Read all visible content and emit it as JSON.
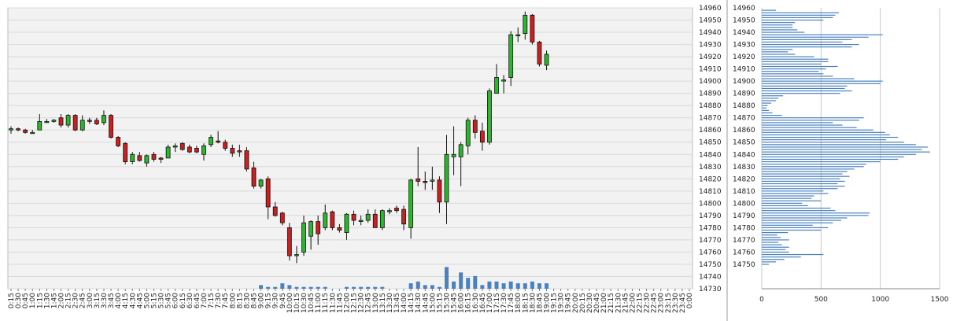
{
  "chart_data": [
    {
      "type": "candlestick",
      "title": "",
      "xlabel": "",
      "ylabel": "",
      "ylim": [
        14730,
        14960
      ],
      "y_ticks": [
        14730,
        14740,
        14750,
        14760,
        14770,
        14780,
        14790,
        14800,
        14810,
        14820,
        14830,
        14840,
        14850,
        14860,
        14870,
        14880,
        14890,
        14900,
        14910,
        14920,
        14930,
        14940,
        14950,
        14960
      ],
      "x_ticks": [
        "0:15",
        "0:30",
        "0:45",
        "1:00",
        "1:15",
        "1:30",
        "1:45",
        "2:00",
        "2:15",
        "2:30",
        "2:45",
        "3:00",
        "3:15",
        "3:30",
        "3:45",
        "4:00",
        "4:15",
        "4:30",
        "4:45",
        "5:00",
        "5:15",
        "5:30",
        "5:45",
        "6:00",
        "6:15",
        "6:30",
        "6:45",
        "7:00",
        "7:15",
        "7:30",
        "7:45",
        "8:00",
        "8:15",
        "8:30",
        "8:45",
        "9:00",
        "9:15",
        "9:30",
        "9:45",
        "10:00",
        "10:15",
        "10:30",
        "10:45",
        "11:00",
        "11:15",
        "11:30",
        "11:45",
        "12:00",
        "12:15",
        "12:30",
        "12:45",
        "13:00",
        "13:15",
        "13:30",
        "13:45",
        "14:00",
        "14:15",
        "14:30",
        "14:45",
        "15:00",
        "15:15",
        "15:30",
        "15:45",
        "16:00",
        "16:15",
        "16:30",
        "16:45",
        "17:00",
        "17:15",
        "17:30",
        "17:45",
        "18:00",
        "18:15",
        "18:30",
        "18:45",
        "19:00",
        "19:15",
        "19:30",
        "19:45",
        "20:00",
        "20:15",
        "20:30",
        "20:45",
        "21:00",
        "21:15",
        "21:30",
        "21:45",
        "22:00",
        "22:15",
        "22:30",
        "22:45",
        "23:00",
        "23:15",
        "23:30",
        "23:45",
        "0:00"
      ],
      "grid": true,
      "colors": {
        "up": "#2db52d",
        "down": "#cc1f1f",
        "volume": "#4a82c0",
        "background": "#f2f2f2",
        "grid": "#d9d9d9"
      },
      "candles": [
        {
          "t": "0:15",
          "o": 14860,
          "h": 14863,
          "l": 14857,
          "c": 14861
        },
        {
          "t": "0:30",
          "o": 14861,
          "h": 14862,
          "l": 14859,
          "c": 14860
        },
        {
          "t": "0:45",
          "o": 14860,
          "h": 14861,
          "l": 14857,
          "c": 14858
        },
        {
          "t": "1:00",
          "o": 14858,
          "h": 14860,
          "l": 14857,
          "c": 14858
        },
        {
          "t": "1:15",
          "o": 14860,
          "h": 14873,
          "l": 14860,
          "c": 14867
        },
        {
          "t": "1:30",
          "o": 14867,
          "h": 14869,
          "l": 14866,
          "c": 14867
        },
        {
          "t": "1:45",
          "o": 14867,
          "h": 14869,
          "l": 14866,
          "c": 14868
        },
        {
          "t": "2:00",
          "o": 14870,
          "h": 14873,
          "l": 14862,
          "c": 14864
        },
        {
          "t": "2:15",
          "o": 14864,
          "h": 14873,
          "l": 14862,
          "c": 14872
        },
        {
          "t": "2:30",
          "o": 14872,
          "h": 14873,
          "l": 14859,
          "c": 14860
        },
        {
          "t": "2:45",
          "o": 14860,
          "h": 14872,
          "l": 14859,
          "c": 14868
        },
        {
          "t": "3:00",
          "o": 14868,
          "h": 14870,
          "l": 14865,
          "c": 14867
        },
        {
          "t": "3:15",
          "o": 14868,
          "h": 14870,
          "l": 14864,
          "c": 14865
        },
        {
          "t": "3:30",
          "o": 14866,
          "h": 14876,
          "l": 14864,
          "c": 14872
        },
        {
          "t": "3:45",
          "o": 14872,
          "h": 14873,
          "l": 14853,
          "c": 14854
        },
        {
          "t": "4:00",
          "o": 14854,
          "h": 14855,
          "l": 14846,
          "c": 14847
        },
        {
          "t": "4:15",
          "o": 14849,
          "h": 14850,
          "l": 14832,
          "c": 14834
        },
        {
          "t": "4:30",
          "o": 14834,
          "h": 14842,
          "l": 14832,
          "c": 14840
        },
        {
          "t": "4:45",
          "o": 14839,
          "h": 14842,
          "l": 14834,
          "c": 14835
        },
        {
          "t": "5:00",
          "o": 14833,
          "h": 14840,
          "l": 14830,
          "c": 14839
        },
        {
          "t": "5:15",
          "o": 14840,
          "h": 14842,
          "l": 14834,
          "c": 14836
        },
        {
          "t": "5:30",
          "o": 14837,
          "h": 14838,
          "l": 14833,
          "c": 14836
        },
        {
          "t": "5:45",
          "o": 14837,
          "h": 14848,
          "l": 14837,
          "c": 14846
        },
        {
          "t": "6:00",
          "o": 14846,
          "h": 14849,
          "l": 14842,
          "c": 14847
        },
        {
          "t": "6:15",
          "o": 14849,
          "h": 14850,
          "l": 14843,
          "c": 14844
        },
        {
          "t": "6:30",
          "o": 14846,
          "h": 14848,
          "l": 14841,
          "c": 14842
        },
        {
          "t": "6:45",
          "o": 14845,
          "h": 14847,
          "l": 14841,
          "c": 14842
        },
        {
          "t": "7:00",
          "o": 14840,
          "h": 14849,
          "l": 14835,
          "c": 14847
        },
        {
          "t": "7:15",
          "o": 14848,
          "h": 14856,
          "l": 14846,
          "c": 14854
        },
        {
          "t": "7:30",
          "o": 14851,
          "h": 14859,
          "l": 14849,
          "c": 14850
        },
        {
          "t": "7:45",
          "o": 14850,
          "h": 14852,
          "l": 14843,
          "c": 14845
        },
        {
          "t": "8:00",
          "o": 14845,
          "h": 14848,
          "l": 14838,
          "c": 14841
        },
        {
          "t": "8:15",
          "o": 14843,
          "h": 14848,
          "l": 14838,
          "c": 14842
        },
        {
          "t": "8:30",
          "o": 14843,
          "h": 14846,
          "l": 14826,
          "c": 14828
        },
        {
          "t": "8:45",
          "o": 14829,
          "h": 14834,
          "l": 14812,
          "c": 14814
        },
        {
          "t": "9:00",
          "o": 14814,
          "h": 14820,
          "l": 14812,
          "c": 14819
        },
        {
          "t": "9:15",
          "o": 14820,
          "h": 14822,
          "l": 14787,
          "c": 14797
        },
        {
          "t": "9:30",
          "o": 14797,
          "h": 14801,
          "l": 14789,
          "c": 14790
        },
        {
          "t": "9:45",
          "o": 14792,
          "h": 14793,
          "l": 14782,
          "c": 14784
        },
        {
          "t": "10:00",
          "o": 14780,
          "h": 14784,
          "l": 14753,
          "c": 14757
        },
        {
          "t": "10:15",
          "o": 14758,
          "h": 14765,
          "l": 14751,
          "c": 14758
        },
        {
          "t": "10:30",
          "o": 14760,
          "h": 14790,
          "l": 14757,
          "c": 14784
        },
        {
          "t": "10:45",
          "o": 14773,
          "h": 14786,
          "l": 14762,
          "c": 14785
        },
        {
          "t": "11:00",
          "o": 14785,
          "h": 14790,
          "l": 14766,
          "c": 14775
        },
        {
          "t": "11:15",
          "o": 14780,
          "h": 14799,
          "l": 14778,
          "c": 14792
        },
        {
          "t": "11:30",
          "o": 14793,
          "h": 14794,
          "l": 14778,
          "c": 14780
        },
        {
          "t": "11:45",
          "o": 14780,
          "h": 14783,
          "l": 14776,
          "c": 14778
        },
        {
          "t": "12:00",
          "o": 14776,
          "h": 14792,
          "l": 14770,
          "c": 14791
        },
        {
          "t": "12:15",
          "o": 14791,
          "h": 14794,
          "l": 14782,
          "c": 14786
        },
        {
          "t": "12:30",
          "o": 14786,
          "h": 14790,
          "l": 14782,
          "c": 14786
        },
        {
          "t": "12:45",
          "o": 14786,
          "h": 14795,
          "l": 14784,
          "c": 14791
        },
        {
          "t": "13:00",
          "o": 14791,
          "h": 14795,
          "l": 14782,
          "c": 14780
        },
        {
          "t": "13:15",
          "o": 14780,
          "h": 14795,
          "l": 14778,
          "c": 14794
        },
        {
          "t": "13:30",
          "o": 14794,
          "h": 14796,
          "l": 14791,
          "c": 14794
        },
        {
          "t": "13:45",
          "o": 14796,
          "h": 14798,
          "l": 14792,
          "c": 14794
        },
        {
          "t": "14:00",
          "o": 14795,
          "h": 14798,
          "l": 14778,
          "c": 14783
        },
        {
          "t": "14:15",
          "o": 14780,
          "h": 14820,
          "l": 14771,
          "c": 14819
        },
        {
          "t": "14:30",
          "o": 14820,
          "h": 14846,
          "l": 14814,
          "c": 14818
        },
        {
          "t": "14:45",
          "o": 14818,
          "h": 14826,
          "l": 14811,
          "c": 14817
        },
        {
          "t": "15:00",
          "o": 14818,
          "h": 14830,
          "l": 14811,
          "c": 14819
        },
        {
          "t": "15:15",
          "o": 14819,
          "h": 14822,
          "l": 14792,
          "c": 14801
        },
        {
          "t": "15:30",
          "o": 14801,
          "h": 14856,
          "l": 14783,
          "c": 14840
        },
        {
          "t": "15:45",
          "o": 14838,
          "h": 14863,
          "l": 14823,
          "c": 14840
        },
        {
          "t": "16:00",
          "o": 14838,
          "h": 14850,
          "l": 14814,
          "c": 14848
        },
        {
          "t": "16:15",
          "o": 14847,
          "h": 14870,
          "l": 14840,
          "c": 14868
        },
        {
          "t": "16:30",
          "o": 14868,
          "h": 14872,
          "l": 14853,
          "c": 14858
        },
        {
          "t": "16:45",
          "o": 14859,
          "h": 14866,
          "l": 14843,
          "c": 14850
        },
        {
          "t": "17:00",
          "o": 14850,
          "h": 14894,
          "l": 14848,
          "c": 14892
        },
        {
          "t": "17:15",
          "o": 14890,
          "h": 14914,
          "l": 14891,
          "c": 14903
        },
        {
          "t": "17:30",
          "o": 14901,
          "h": 14905,
          "l": 14890,
          "c": 14901
        },
        {
          "t": "17:45",
          "o": 14903,
          "h": 14941,
          "l": 14896,
          "c": 14938
        },
        {
          "t": "18:00",
          "o": 14938,
          "h": 14944,
          "l": 14932,
          "c": 14938
        },
        {
          "t": "18:15",
          "o": 14939,
          "h": 14957,
          "l": 14934,
          "c": 14954
        },
        {
          "t": "18:30",
          "o": 14954,
          "h": 14955,
          "l": 14930,
          "c": 14932
        },
        {
          "t": "18:45",
          "o": 14932,
          "h": 14933,
          "l": 14912,
          "c": 14914
        },
        {
          "t": "19:00",
          "o": 14913,
          "h": 14925,
          "l": 14909,
          "c": 14922
        }
      ],
      "volume": [
        0,
        0,
        0,
        0,
        0,
        0,
        0,
        0,
        0,
        0,
        0,
        0,
        0,
        0,
        0,
        0,
        0,
        0,
        0,
        0,
        0,
        0,
        0,
        0,
        0,
        0,
        0,
        0,
        0,
        0,
        0,
        0,
        0,
        0,
        0,
        2,
        1,
        1,
        3,
        2,
        1,
        1,
        1,
        1,
        1,
        0,
        0,
        1,
        1,
        1,
        1,
        1,
        1,
        0,
        0,
        0,
        3,
        4,
        2,
        2,
        1,
        12,
        4,
        9,
        6,
        7,
        2,
        4,
        4,
        3,
        4,
        3,
        3,
        4,
        3,
        3,
        0,
        0,
        0,
        0,
        0,
        0,
        0,
        0,
        0,
        0,
        0,
        0,
        0,
        0,
        0,
        0,
        0,
        0,
        0,
        0
      ]
    },
    {
      "type": "bar",
      "orientation": "horizontal",
      "title": "",
      "xlim": [
        0,
        1500
      ],
      "x_ticks": [
        "0",
        "500",
        "1000",
        "1500"
      ],
      "ylim": [
        14730,
        14960
      ],
      "y_ticks": [
        14750,
        14760,
        14770,
        14780,
        14790,
        14800,
        14810,
        14820,
        14830,
        14840,
        14850,
        14860,
        14870,
        14880,
        14890,
        14900,
        14910,
        14920,
        14930,
        14940,
        14950,
        14960
      ],
      "grid": true,
      "colors": {
        "bar": "#4a82c0",
        "grid": "#c8c8c8"
      },
      "levels": [
        14750,
        14752,
        14754,
        14756,
        14758,
        14760,
        14762,
        14764,
        14766,
        14768,
        14770,
        14772,
        14774,
        14776,
        14778,
        14780,
        14782,
        14784,
        14786,
        14788,
        14790,
        14792,
        14794,
        14796,
        14798,
        14800,
        14802,
        14804,
        14806,
        14808,
        14810,
        14812,
        14814,
        14816,
        14818,
        14820,
        14822,
        14824,
        14826,
        14828,
        14830,
        14832,
        14834,
        14836,
        14838,
        14840,
        14842,
        14844,
        14846,
        14848,
        14850,
        14852,
        14854,
        14856,
        14858,
        14860,
        14862,
        14864,
        14866,
        14868,
        14870,
        14872,
        14874,
        14876,
        14878,
        14880,
        14882,
        14884,
        14886,
        14888,
        14890,
        14892,
        14894,
        14896,
        14898,
        14900,
        14902,
        14904,
        14906,
        14908,
        14910,
        14912,
        14914,
        14916,
        14918,
        14920,
        14922,
        14924,
        14926,
        14928,
        14930,
        14932,
        14934,
        14936,
        14938,
        14940,
        14942,
        14944,
        14946,
        14948,
        14950,
        14952,
        14954,
        14956,
        14958
      ],
      "values": [
        60,
        120,
        190,
        330,
        520,
        230,
        200,
        230,
        170,
        140,
        230,
        160,
        130,
        220,
        500,
        560,
        430,
        600,
        670,
        720,
        900,
        910,
        620,
        580,
        390,
        340,
        500,
        420,
        440,
        560,
        520,
        640,
        700,
        640,
        700,
        660,
        740,
        680,
        720,
        780,
        860,
        880,
        1000,
        1150,
        1200,
        1300,
        1420,
        1350,
        1400,
        1300,
        1200,
        1050,
        1150,
        1080,
        1040,
        940,
        800,
        680,
        600,
        820,
        860,
        170,
        90,
        60,
        40,
        50,
        80,
        120,
        140,
        180,
        660,
        760,
        700,
        720,
        1000,
        1020,
        780,
        600,
        520,
        480,
        540,
        640,
        500,
        560,
        560,
        440,
        280,
        220,
        260,
        760,
        820,
        680,
        760,
        900,
        1020,
        360,
        300,
        260,
        260,
        280,
        520,
        600,
        620,
        650,
        120
      ]
    }
  ]
}
